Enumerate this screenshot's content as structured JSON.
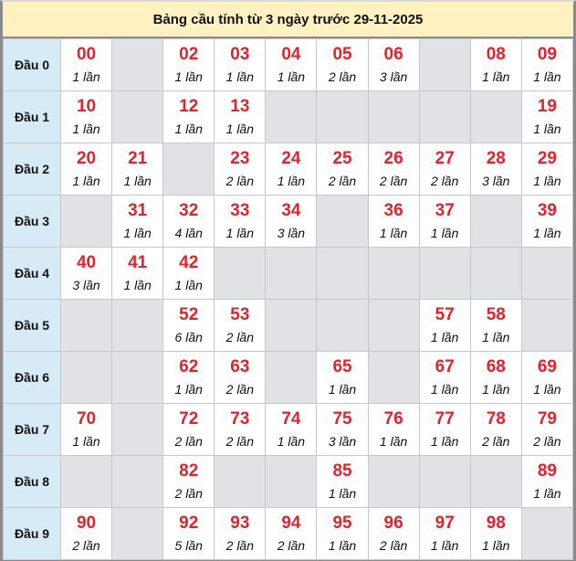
{
  "title": "Bảng cầu tính từ 3 ngày trước 29-11-2025",
  "colors": {
    "number": "#e8202a",
    "header_bg": "#d7ebf6",
    "title_bg": "#fff2c0",
    "empty_bg": "#e1e2e5"
  },
  "rows": [
    {
      "label": "Đầu 0",
      "cells": [
        [
          "00",
          "1 lần"
        ],
        null,
        [
          "02",
          "1 lần"
        ],
        [
          "03",
          "1 lần"
        ],
        [
          "04",
          "1 lần"
        ],
        [
          "05",
          "2 lần"
        ],
        [
          "06",
          "3 lần"
        ],
        null,
        [
          "08",
          "1 lần"
        ],
        [
          "09",
          "1 lần"
        ]
      ]
    },
    {
      "label": "Đầu 1",
      "cells": [
        [
          "10",
          "1 lần"
        ],
        null,
        [
          "12",
          "1 lần"
        ],
        [
          "13",
          "1 lần"
        ],
        null,
        null,
        null,
        null,
        null,
        [
          "19",
          "1 lần"
        ]
      ]
    },
    {
      "label": "Đầu 2",
      "cells": [
        [
          "20",
          "1 lần"
        ],
        [
          "21",
          "1 lần"
        ],
        null,
        [
          "23",
          "2 lần"
        ],
        [
          "24",
          "1 lần"
        ],
        [
          "25",
          "2 lần"
        ],
        [
          "26",
          "2 lần"
        ],
        [
          "27",
          "2 lần"
        ],
        [
          "28",
          "3 lần"
        ],
        [
          "29",
          "1 lần"
        ]
      ]
    },
    {
      "label": "Đầu 3",
      "cells": [
        null,
        [
          "31",
          "1 lần"
        ],
        [
          "32",
          "4 lần"
        ],
        [
          "33",
          "1 lần"
        ],
        [
          "34",
          "3 lần"
        ],
        null,
        [
          "36",
          "1 lần"
        ],
        [
          "37",
          "1 lần"
        ],
        null,
        [
          "39",
          "1 lần"
        ]
      ]
    },
    {
      "label": "Đầu 4",
      "cells": [
        [
          "40",
          "3 lần"
        ],
        [
          "41",
          "1 lần"
        ],
        [
          "42",
          "1 lần"
        ],
        null,
        null,
        null,
        null,
        null,
        null,
        null
      ]
    },
    {
      "label": "Đầu 5",
      "cells": [
        null,
        null,
        [
          "52",
          "6 lần"
        ],
        [
          "53",
          "2 lần"
        ],
        null,
        null,
        null,
        [
          "57",
          "1 lần"
        ],
        [
          "58",
          "1 lần"
        ],
        null
      ]
    },
    {
      "label": "Đầu 6",
      "cells": [
        null,
        null,
        [
          "62",
          "1 lần"
        ],
        [
          "63",
          "2 lần"
        ],
        null,
        [
          "65",
          "1 lần"
        ],
        null,
        [
          "67",
          "1 lần"
        ],
        [
          "68",
          "1 lần"
        ],
        [
          "69",
          "1 lần"
        ]
      ]
    },
    {
      "label": "Đầu 7",
      "cells": [
        [
          "70",
          "1 lần"
        ],
        null,
        [
          "72",
          "2 lần"
        ],
        [
          "73",
          "2 lần"
        ],
        [
          "74",
          "1 lần"
        ],
        [
          "75",
          "3 lần"
        ],
        [
          "76",
          "1 lần"
        ],
        [
          "77",
          "1 lần"
        ],
        [
          "78",
          "2 lần"
        ],
        [
          "79",
          "2 lần"
        ]
      ]
    },
    {
      "label": "Đầu 8",
      "cells": [
        null,
        null,
        [
          "82",
          "2 lần"
        ],
        null,
        null,
        [
          "85",
          "1 lần"
        ],
        null,
        null,
        null,
        [
          "89",
          "1 lần"
        ]
      ]
    },
    {
      "label": "Đầu 9",
      "cells": [
        [
          "90",
          "2 lần"
        ],
        null,
        [
          "92",
          "5 lần"
        ],
        [
          "93",
          "2 lần"
        ],
        [
          "94",
          "2 lần"
        ],
        [
          "95",
          "1 lần"
        ],
        [
          "96",
          "2 lần"
        ],
        [
          "97",
          "1 lần"
        ],
        [
          "98",
          "1 lần"
        ],
        null
      ]
    }
  ]
}
